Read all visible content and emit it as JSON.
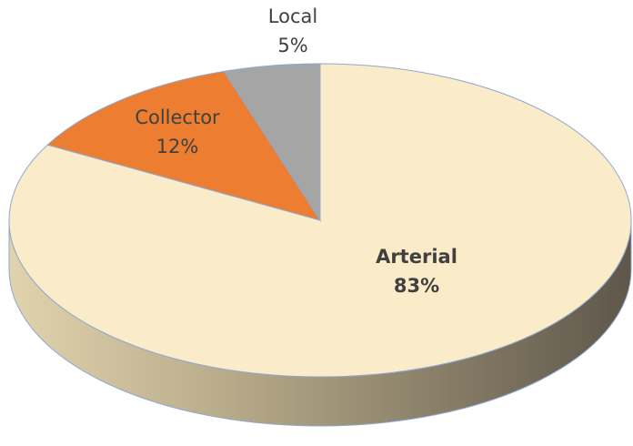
{
  "chart_data": {
    "type": "pie3d",
    "categories": [
      "Arterial",
      "Collector",
      "Local"
    ],
    "values": [
      83,
      12,
      5
    ],
    "value_labels": [
      "83%",
      "12%",
      "5%"
    ],
    "colors": [
      "#fbecc9",
      "#ed7d31",
      "#a5a5a5"
    ]
  }
}
